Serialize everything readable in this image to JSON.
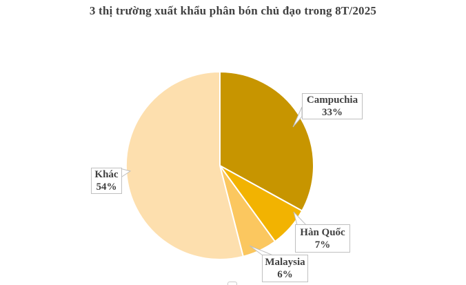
{
  "chart_data": {
    "type": "pie",
    "title": "3 thị trường xuất khẩu phân bón chủ đạo trong 8T/2025",
    "start_angle_deg": 0,
    "direction": "clockwise",
    "slices": [
      {
        "label": "Campuchia",
        "value": 33,
        "percent_label": "33%",
        "color": "#C79500"
      },
      {
        "label": "Hàn Quốc",
        "value": 7,
        "percent_label": "7%",
        "color": "#F2B301"
      },
      {
        "label": "Malaysia",
        "value": 6,
        "percent_label": "6%",
        "color": "#FBC75F"
      },
      {
        "label": "Khác",
        "value": 54,
        "percent_label": "54%",
        "color": "#FDDFAE"
      }
    ],
    "slice_border_color": "#FFFFFF",
    "legend": "none",
    "callout_style": {
      "border_color": "#BFBFBF",
      "text_color": "#404040",
      "background": "#FFFFFF"
    },
    "title_color": "#404040"
  }
}
